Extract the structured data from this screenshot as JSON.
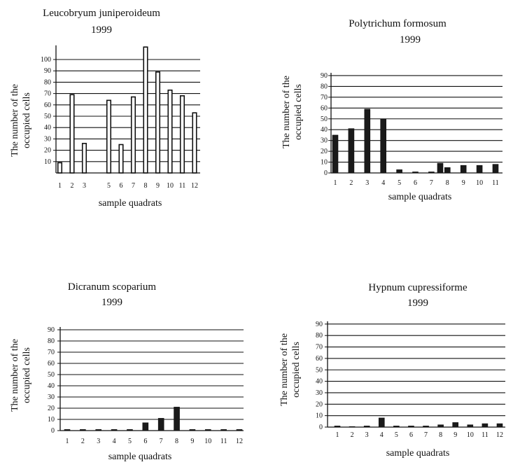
{
  "chart_data": [
    {
      "type": "bar",
      "title": "Leucobryum juniperoideum",
      "subtitle": "1999",
      "xlabel": "sample quadrats",
      "ylabel": "The number of the occupied cells",
      "x_tick_labels": [
        "1",
        "2",
        "3",
        "5",
        "6",
        "7",
        "8",
        "9",
        "10",
        "11",
        "12"
      ],
      "y_ticks": [
        10,
        20,
        30,
        40,
        50,
        60,
        70,
        80,
        90,
        100
      ],
      "ylim": [
        0,
        110
      ],
      "grid": true,
      "series": [
        {
          "bar_style": "hollow",
          "points": [
            {
              "x": 1,
              "y": 9
            },
            {
              "x": 2,
              "y": 69
            },
            {
              "x": 3,
              "y": 26
            },
            {
              "x": 5,
              "y": 64
            },
            {
              "x": 6,
              "y": 25
            },
            {
              "x": 7,
              "y": 67
            },
            {
              "x": 8,
              "y": 111
            },
            {
              "x": 9,
              "y": 89
            },
            {
              "x": 10,
              "y": 73
            },
            {
              "x": 11,
              "y": 68
            },
            {
              "x": 12,
              "y": 53
            }
          ]
        }
      ]
    },
    {
      "type": "bar",
      "title": "Polytrichum formosum",
      "subtitle": "1999",
      "xlabel": "sample quadrats",
      "ylabel": "The number of the occupied cells",
      "x_tick_labels": [
        "1",
        "2",
        "3",
        "4",
        "5",
        "6",
        "7",
        "8",
        "9",
        "10",
        "11"
      ],
      "y_ticks": [
        0,
        10,
        20,
        30,
        40,
        50,
        60,
        70,
        80,
        90
      ],
      "ylim": [
        0,
        90
      ],
      "grid": true,
      "series": [
        {
          "bar_style": "solid",
          "points": [
            {
              "x": 1,
              "y": 35
            },
            {
              "x": 2,
              "y": 41
            },
            {
              "x": 3,
              "y": 59
            },
            {
              "x": 4,
              "y": 50
            },
            {
              "x": 5,
              "y": 3
            },
            {
              "x": 6,
              "y": 1
            },
            {
              "x": 7,
              "y": 1
            },
            {
              "x": 7.55,
              "y": 9
            },
            {
              "x": 8,
              "y": 5
            },
            {
              "x": 9,
              "y": 7
            },
            {
              "x": 10,
              "y": 7
            },
            {
              "x": 11,
              "y": 8
            }
          ]
        }
      ]
    },
    {
      "type": "bar",
      "title": "Dicranum scoparium",
      "subtitle": "1999",
      "xlabel": "sample quadrats",
      "ylabel": "The number of the occupied cells",
      "x_tick_labels": [
        "1",
        "2",
        "3",
        "4",
        "5",
        "6",
        "7",
        "8",
        "9",
        "10",
        "11",
        "12"
      ],
      "y_ticks": [
        0,
        10,
        20,
        30,
        40,
        50,
        60,
        70,
        80,
        90
      ],
      "ylim": [
        0,
        90
      ],
      "grid": true,
      "series": [
        {
          "bar_style": "solid",
          "points": [
            {
              "x": 1,
              "y": 1
            },
            {
              "x": 2,
              "y": 1
            },
            {
              "x": 3,
              "y": 1
            },
            {
              "x": 4,
              "y": 1
            },
            {
              "x": 5,
              "y": 1
            },
            {
              "x": 6,
              "y": 7
            },
            {
              "x": 7,
              "y": 11
            },
            {
              "x": 8,
              "y": 21
            },
            {
              "x": 9,
              "y": 1
            },
            {
              "x": 10,
              "y": 1
            },
            {
              "x": 11,
              "y": 1
            },
            {
              "x": 12,
              "y": 1
            }
          ]
        }
      ]
    },
    {
      "type": "bar",
      "title": "Hypnum cupressiforme",
      "subtitle": "1999",
      "xlabel": "sample quadrats",
      "ylabel": "The number of the occupied cells",
      "x_tick_labels": [
        "1",
        "2",
        "3",
        "4",
        "5",
        "6",
        "7",
        "8",
        "9",
        "10",
        "11",
        "12"
      ],
      "y_ticks": [
        0,
        10,
        20,
        30,
        40,
        50,
        60,
        70,
        80,
        90
      ],
      "ylim": [
        0,
        90
      ],
      "grid": true,
      "series": [
        {
          "bar_style": "solid",
          "points": [
            {
              "x": 1,
              "y": 1
            },
            {
              "x": 2,
              "y": 0
            },
            {
              "x": 3,
              "y": 1
            },
            {
              "x": 4,
              "y": 8
            },
            {
              "x": 5,
              "y": 1
            },
            {
              "x": 6,
              "y": 1
            },
            {
              "x": 7,
              "y": 1
            },
            {
              "x": 8,
              "y": 2
            },
            {
              "x": 9,
              "y": 4
            },
            {
              "x": 10,
              "y": 2
            },
            {
              "x": 11,
              "y": 3
            },
            {
              "x": 12,
              "y": 3
            }
          ]
        }
      ]
    }
  ]
}
